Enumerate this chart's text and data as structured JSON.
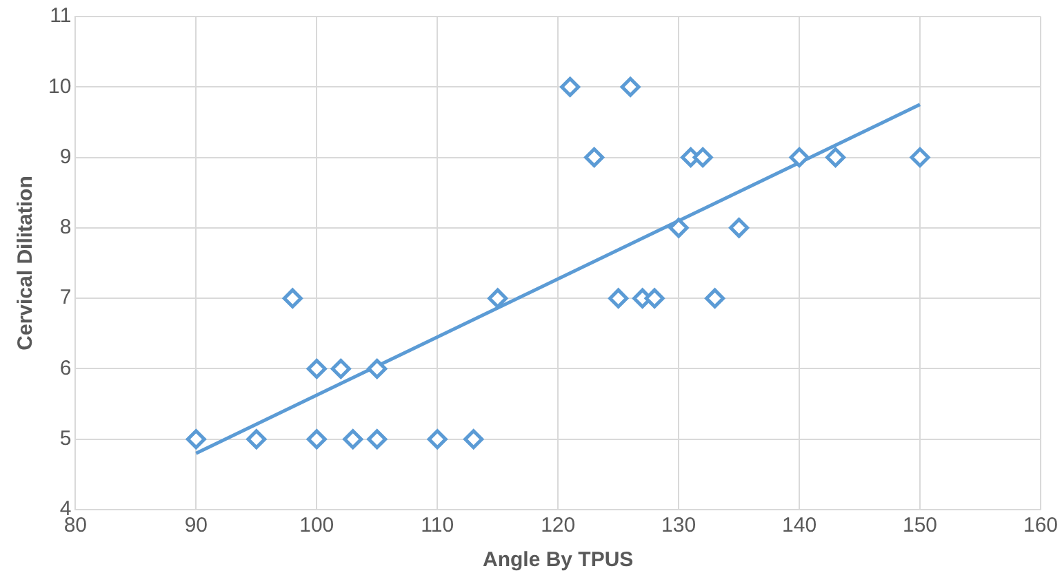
{
  "chart_data": {
    "type": "scatter",
    "xlabel": "Angle By TPUS",
    "ylabel": "Cervical Dilitation",
    "xlim": [
      80,
      160
    ],
    "xticks": [
      80,
      90,
      100,
      110,
      120,
      130,
      140,
      150,
      160
    ],
    "ylim": [
      4,
      11
    ],
    "yticks": [
      4,
      5,
      6,
      7,
      8,
      9,
      10,
      11
    ],
    "grid": true,
    "legend": false,
    "marker": "diamond",
    "series": [
      {
        "color": "#5b9bd5",
        "x": [
          90,
          95,
          98,
          100,
          100,
          102,
          103,
          105,
          105,
          110,
          113,
          115,
          121,
          123,
          125,
          126,
          127,
          128,
          130,
          131,
          132,
          133,
          135,
          140,
          143,
          150
        ],
        "values": [
          5,
          5,
          7,
          6,
          5,
          6,
          5,
          6,
          5,
          5,
          5,
          7,
          10,
          9,
          7,
          10,
          7,
          7,
          8,
          9,
          9,
          7,
          8,
          9,
          9,
          9
        ]
      },
      {
        "type": "line",
        "color": "#5b9bd5",
        "marker": "none",
        "line_style": "solid",
        "x": [
          90,
          150
        ],
        "values": [
          4.8,
          9.75
        ]
      }
    ]
  }
}
